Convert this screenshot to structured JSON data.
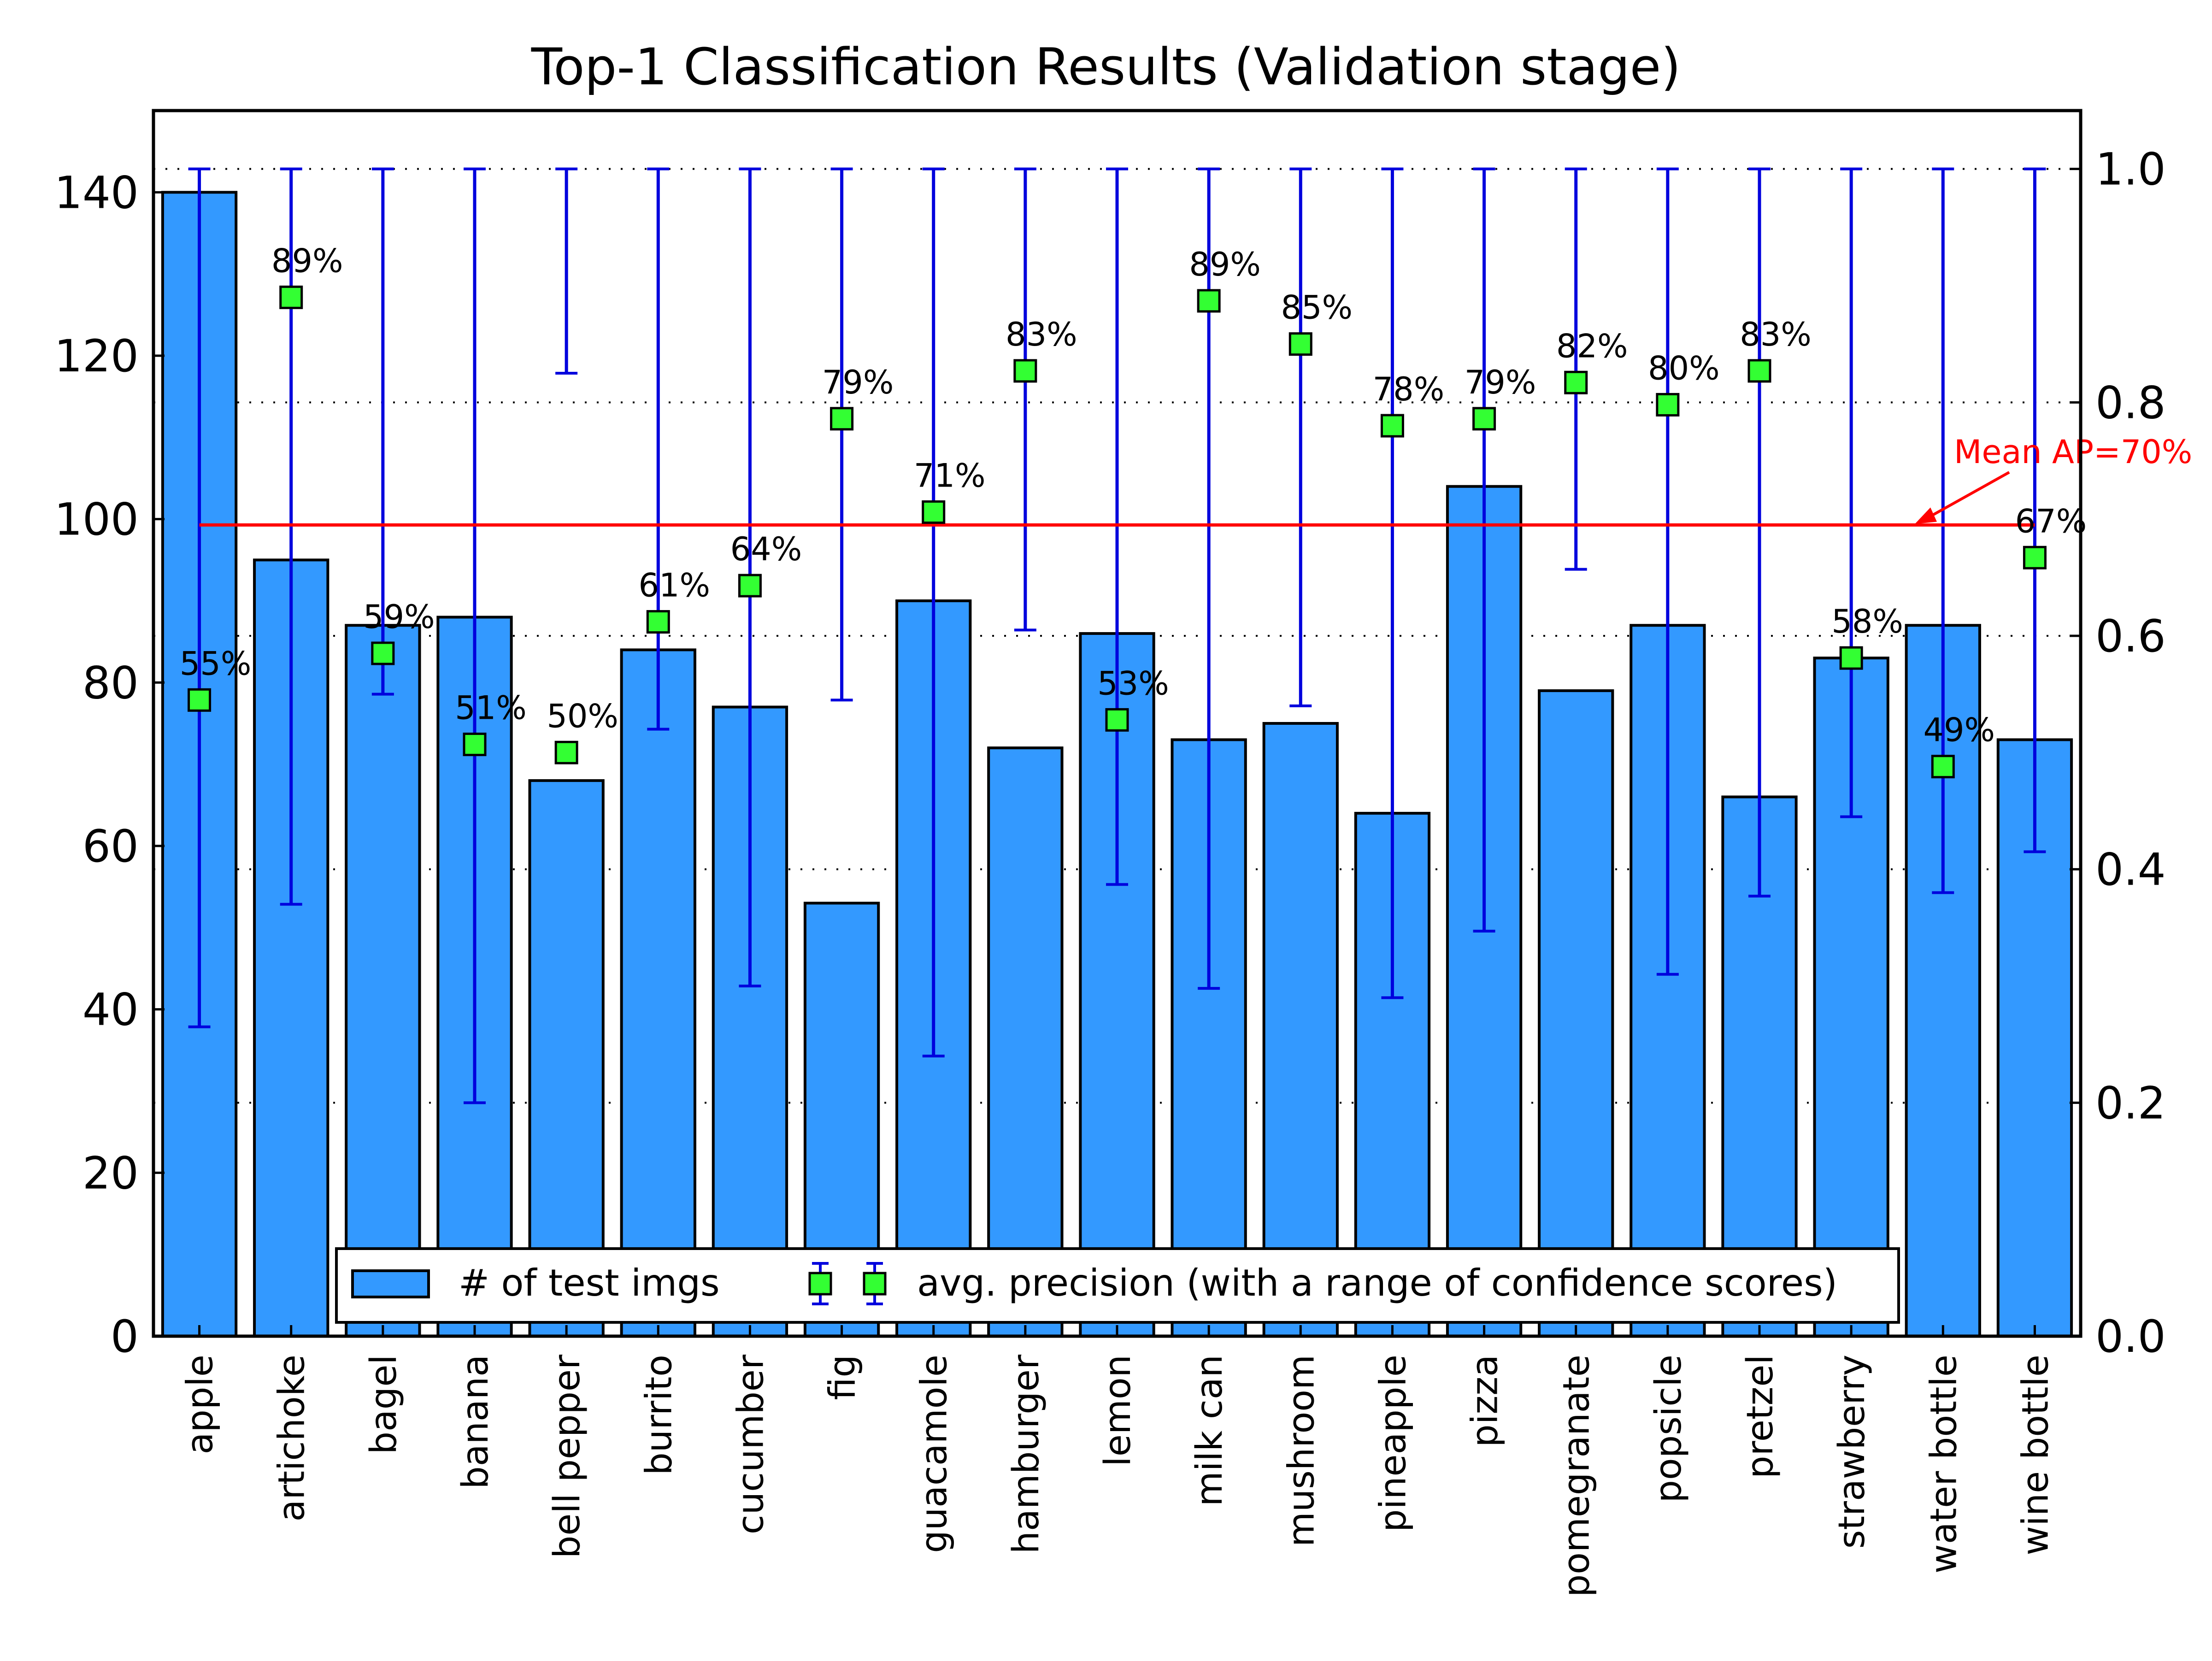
{
  "chart_data": {
    "type": "bar",
    "title": "Top-1 Classification Results (Validation stage)",
    "xlabel": "",
    "ylabel": "",
    "categories": [
      "apple",
      "artichoke",
      "bagel",
      "banana",
      "bell pepper",
      "burrito",
      "cucumber",
      "fig",
      "guacamole",
      "hamburger",
      "lemon",
      "milk can",
      "mushroom",
      "pineapple",
      "pizza",
      "pomegranate",
      "popsicle",
      "pretzel",
      "strawberry",
      "water bottle",
      "wine bottle"
    ],
    "bars": {
      "name": "# of test imgs",
      "color": "#3399ff",
      "values": [
        140,
        95,
        87,
        88,
        68,
        84,
        77,
        53,
        90,
        72,
        86,
        73,
        75,
        64,
        104,
        79,
        87,
        66,
        83,
        87,
        73
      ]
    },
    "precision": {
      "name": "avg. precision (with a range of confidence scores)",
      "marker_color": "#33ff33",
      "errorbar_color": "#0000dd",
      "values": [
        0.545,
        0.89,
        0.585,
        0.507,
        0.5,
        0.612,
        0.643,
        0.786,
        0.706,
        0.827,
        0.528,
        0.887,
        0.85,
        0.78,
        0.786,
        0.817,
        0.798,
        0.827,
        0.581,
        0.488,
        0.667
      ],
      "labels": [
        "55%",
        "89%",
        "59%",
        "51%",
        "50%",
        "61%",
        "64%",
        "79%",
        "71%",
        "83%",
        "53%",
        "89%",
        "85%",
        "78%",
        "79%",
        "82%",
        "80%",
        "83%",
        "58%",
        "49%",
        "67%"
      ],
      "range_low": [
        0.265,
        0.37,
        0.55,
        0.2,
        0.825,
        0.52,
        0.3,
        0.545,
        0.24,
        0.605,
        0.387,
        0.298,
        0.54,
        0.29,
        0.347,
        0.657,
        0.31,
        0.377,
        0.445,
        0.38,
        0.415
      ],
      "range_high": [
        1.0,
        1.0,
        1.0,
        1.0,
        1.0,
        1.0,
        1.0,
        1.0,
        1.0,
        1.0,
        1.0,
        1.0,
        1.0,
        1.0,
        1.0,
        1.0,
        1.0,
        1.0,
        1.0,
        1.0,
        1.0
      ]
    },
    "mean_ap": {
      "value": 0.695,
      "label": "Mean AP=70%",
      "color": "#ff0000"
    },
    "y_left": {
      "lim": [
        0,
        150
      ],
      "ticks": [
        "0",
        "20",
        "40",
        "60",
        "80",
        "100",
        "120",
        "140"
      ]
    },
    "y_right": {
      "lim": [
        0,
        1.05
      ],
      "ticks": [
        "0.0",
        "0.2",
        "0.4",
        "0.6",
        "0.8",
        "1.0"
      ]
    },
    "grid": "right-axis dotted",
    "legend": {
      "placement": "bottom-center"
    }
  }
}
